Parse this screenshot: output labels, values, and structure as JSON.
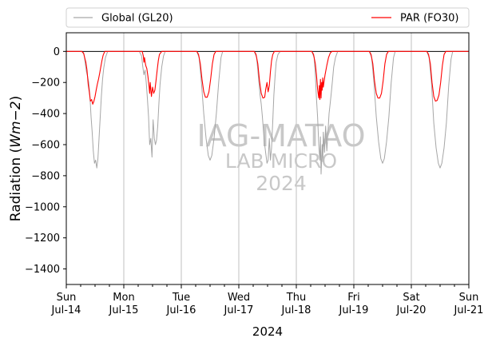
{
  "chart_data": {
    "type": "line",
    "ylabel_prefix": "Radiation (",
    "ylabel_math": "Wm−2",
    "ylabel_suffix": ")",
    "xlabel": "2024",
    "ylim": [
      -1500,
      120
    ],
    "xlim": [
      0,
      7
    ],
    "yticks": [
      0,
      -200,
      -400,
      -600,
      -800,
      -1000,
      -1200,
      -1400
    ],
    "xticks": [
      {
        "x": 0,
        "day": "Sun",
        "date": "Jul-14"
      },
      {
        "x": 1,
        "day": "Mon",
        "date": "Jul-15"
      },
      {
        "x": 2,
        "day": "Tue",
        "date": "Jul-16"
      },
      {
        "x": 3,
        "day": "Wed",
        "date": "Jul-17"
      },
      {
        "x": 4,
        "day": "Thu",
        "date": "Jul-18"
      },
      {
        "x": 5,
        "day": "Fri",
        "date": "Jul-19"
      },
      {
        "x": 6,
        "day": "Sat",
        "date": "Jul-20"
      },
      {
        "x": 7,
        "day": "Sun",
        "date": "Jul-21"
      }
    ],
    "grid": "vertical at day boundaries",
    "watermark": [
      "IAG-MATAO",
      "LAB MICRO",
      "2024"
    ],
    "legend": [
      "Global (GL20)",
      "PAR (FO30)"
    ],
    "legend_placement": "top, above plot",
    "series": [
      {
        "name": "Global (GL20)",
        "color": "#a6a6a6",
        "points": [
          [
            0,
            0
          ],
          [
            0.27,
            0
          ],
          [
            0.31,
            -20
          ],
          [
            0.33,
            -80
          ],
          [
            0.35,
            -130
          ],
          [
            0.37,
            -160
          ],
          [
            0.39,
            -200
          ],
          [
            0.41,
            -280
          ],
          [
            0.43,
            -420
          ],
          [
            0.45,
            -520
          ],
          [
            0.47,
            -640
          ],
          [
            0.49,
            -720
          ],
          [
            0.51,
            -700
          ],
          [
            0.53,
            -750
          ],
          [
            0.55,
            -690
          ],
          [
            0.57,
            -560
          ],
          [
            0.59,
            -420
          ],
          [
            0.61,
            -290
          ],
          [
            0.63,
            -180
          ],
          [
            0.65,
            -110
          ],
          [
            0.68,
            -40
          ],
          [
            0.72,
            0
          ],
          [
            1.27,
            0
          ],
          [
            1.31,
            -30
          ],
          [
            1.33,
            -100
          ],
          [
            1.35,
            -150
          ],
          [
            1.37,
            -120
          ],
          [
            1.39,
            -200
          ],
          [
            1.41,
            -300
          ],
          [
            1.43,
            -420
          ],
          [
            1.45,
            -600
          ],
          [
            1.47,
            -560
          ],
          [
            1.49,
            -680
          ],
          [
            1.51,
            -440
          ],
          [
            1.53,
            -560
          ],
          [
            1.55,
            -600
          ],
          [
            1.57,
            -570
          ],
          [
            1.59,
            -480
          ],
          [
            1.61,
            -340
          ],
          [
            1.63,
            -210
          ],
          [
            1.66,
            -100
          ],
          [
            1.69,
            -30
          ],
          [
            1.72,
            0
          ],
          [
            2.27,
            0
          ],
          [
            2.31,
            -40
          ],
          [
            2.35,
            -200
          ],
          [
            2.39,
            -400
          ],
          [
            2.43,
            -560
          ],
          [
            2.47,
            -670
          ],
          [
            2.5,
            -700
          ],
          [
            2.53,
            -670
          ],
          [
            2.57,
            -560
          ],
          [
            2.61,
            -400
          ],
          [
            2.65,
            -200
          ],
          [
            2.69,
            -40
          ],
          [
            2.72,
            0
          ],
          [
            3.27,
            0
          ],
          [
            3.31,
            -40
          ],
          [
            3.33,
            -120
          ],
          [
            3.35,
            -200
          ],
          [
            3.37,
            -280
          ],
          [
            3.39,
            -340
          ],
          [
            3.41,
            -420
          ],
          [
            3.43,
            -520
          ],
          [
            3.45,
            -600
          ],
          [
            3.47,
            -660
          ],
          [
            3.49,
            -720
          ],
          [
            3.51,
            -700
          ],
          [
            3.53,
            -560
          ],
          [
            3.55,
            -700
          ],
          [
            3.57,
            -620
          ],
          [
            3.59,
            -450
          ],
          [
            3.61,
            -280
          ],
          [
            3.63,
            -160
          ],
          [
            3.65,
            -70
          ],
          [
            3.68,
            -20
          ],
          [
            3.72,
            0
          ],
          [
            4.27,
            0
          ],
          [
            4.31,
            -40
          ],
          [
            4.33,
            -150
          ],
          [
            4.35,
            -300
          ],
          [
            4.37,
            -420
          ],
          [
            4.39,
            -600
          ],
          [
            4.41,
            -700
          ],
          [
            4.42,
            -550
          ],
          [
            4.43,
            -790
          ],
          [
            4.45,
            -600
          ],
          [
            4.46,
            -710
          ],
          [
            4.47,
            -520
          ],
          [
            4.49,
            -650
          ],
          [
            4.51,
            -480
          ],
          [
            4.53,
            -640
          ],
          [
            4.55,
            -520
          ],
          [
            4.57,
            -400
          ],
          [
            4.59,
            -330
          ],
          [
            4.61,
            -260
          ],
          [
            4.63,
            -180
          ],
          [
            4.65,
            -100
          ],
          [
            4.68,
            -40
          ],
          [
            4.72,
            0
          ],
          [
            5.27,
            0
          ],
          [
            5.31,
            -40
          ],
          [
            5.35,
            -200
          ],
          [
            5.39,
            -420
          ],
          [
            5.43,
            -580
          ],
          [
            5.47,
            -690
          ],
          [
            5.5,
            -720
          ],
          [
            5.53,
            -690
          ],
          [
            5.57,
            -580
          ],
          [
            5.61,
            -420
          ],
          [
            5.65,
            -200
          ],
          [
            5.69,
            -40
          ],
          [
            5.72,
            0
          ],
          [
            6.27,
            0
          ],
          [
            6.31,
            -40
          ],
          [
            6.35,
            -200
          ],
          [
            6.39,
            -460
          ],
          [
            6.43,
            -620
          ],
          [
            6.47,
            -720
          ],
          [
            6.5,
            -750
          ],
          [
            6.53,
            -720
          ],
          [
            6.57,
            -620
          ],
          [
            6.61,
            -460
          ],
          [
            6.65,
            -220
          ],
          [
            6.69,
            -50
          ],
          [
            6.72,
            0
          ],
          [
            7,
            0
          ]
        ]
      },
      {
        "name": "PAR (FO30)",
        "color": "#ff0000",
        "points": [
          [
            0,
            0
          ],
          [
            0.27,
            0
          ],
          [
            0.3,
            -10
          ],
          [
            0.32,
            -40
          ],
          [
            0.34,
            -70
          ],
          [
            0.36,
            -120
          ],
          [
            0.38,
            -210
          ],
          [
            0.4,
            -260
          ],
          [
            0.42,
            -320
          ],
          [
            0.44,
            -310
          ],
          [
            0.46,
            -340
          ],
          [
            0.48,
            -320
          ],
          [
            0.5,
            -290
          ],
          [
            0.52,
            -250
          ],
          [
            0.54,
            -210
          ],
          [
            0.56,
            -180
          ],
          [
            0.58,
            -140
          ],
          [
            0.6,
            -100
          ],
          [
            0.62,
            -60
          ],
          [
            0.64,
            -25
          ],
          [
            0.67,
            0
          ],
          [
            1.32,
            0
          ],
          [
            1.34,
            -30
          ],
          [
            1.35,
            -70
          ],
          [
            1.36,
            -40
          ],
          [
            1.38,
            -90
          ],
          [
            1.4,
            -110
          ],
          [
            1.42,
            -160
          ],
          [
            1.44,
            -230
          ],
          [
            1.45,
            -270
          ],
          [
            1.46,
            -200
          ],
          [
            1.48,
            -290
          ],
          [
            1.5,
            -230
          ],
          [
            1.52,
            -270
          ],
          [
            1.54,
            -250
          ],
          [
            1.56,
            -190
          ],
          [
            1.58,
            -120
          ],
          [
            1.6,
            -60
          ],
          [
            1.62,
            -20
          ],
          [
            1.66,
            0
          ],
          [
            2.27,
            0
          ],
          [
            2.3,
            -20
          ],
          [
            2.33,
            -80
          ],
          [
            2.36,
            -180
          ],
          [
            2.39,
            -260
          ],
          [
            2.42,
            -295
          ],
          [
            2.45,
            -295
          ],
          [
            2.48,
            -260
          ],
          [
            2.51,
            -180
          ],
          [
            2.54,
            -80
          ],
          [
            2.57,
            -20
          ],
          [
            2.6,
            0
          ],
          [
            3.27,
            0
          ],
          [
            3.3,
            -20
          ],
          [
            3.33,
            -80
          ],
          [
            3.36,
            -190
          ],
          [
            3.39,
            -270
          ],
          [
            3.42,
            -300
          ],
          [
            3.45,
            -295
          ],
          [
            3.47,
            -240
          ],
          [
            3.49,
            -200
          ],
          [
            3.51,
            -260
          ],
          [
            3.53,
            -220
          ],
          [
            3.55,
            -130
          ],
          [
            3.57,
            -60
          ],
          [
            3.59,
            -20
          ],
          [
            3.62,
            0
          ],
          [
            4.27,
            0
          ],
          [
            4.3,
            -20
          ],
          [
            4.33,
            -80
          ],
          [
            4.35,
            -150
          ],
          [
            4.37,
            -240
          ],
          [
            4.39,
            -300
          ],
          [
            4.4,
            -220
          ],
          [
            4.41,
            -310
          ],
          [
            4.42,
            -180
          ],
          [
            4.43,
            -300
          ],
          [
            4.44,
            -200
          ],
          [
            4.45,
            -250
          ],
          [
            4.46,
            -170
          ],
          [
            4.47,
            -230
          ],
          [
            4.48,
            -200
          ],
          [
            4.5,
            -150
          ],
          [
            4.53,
            -90
          ],
          [
            4.56,
            -40
          ],
          [
            4.59,
            -10
          ],
          [
            4.62,
            0
          ],
          [
            5.27,
            0
          ],
          [
            5.3,
            -20
          ],
          [
            5.33,
            -80
          ],
          [
            5.36,
            -190
          ],
          [
            5.39,
            -270
          ],
          [
            5.42,
            -300
          ],
          [
            5.45,
            -300
          ],
          [
            5.48,
            -270
          ],
          [
            5.51,
            -190
          ],
          [
            5.54,
            -80
          ],
          [
            5.57,
            -20
          ],
          [
            5.6,
            0
          ],
          [
            6.27,
            0
          ],
          [
            6.3,
            -20
          ],
          [
            6.33,
            -80
          ],
          [
            6.36,
            -200
          ],
          [
            6.39,
            -290
          ],
          [
            6.42,
            -320
          ],
          [
            6.45,
            -315
          ],
          [
            6.48,
            -280
          ],
          [
            6.51,
            -200
          ],
          [
            6.54,
            -90
          ],
          [
            6.57,
            -20
          ],
          [
            6.6,
            0
          ],
          [
            7,
            0
          ]
        ]
      }
    ]
  }
}
